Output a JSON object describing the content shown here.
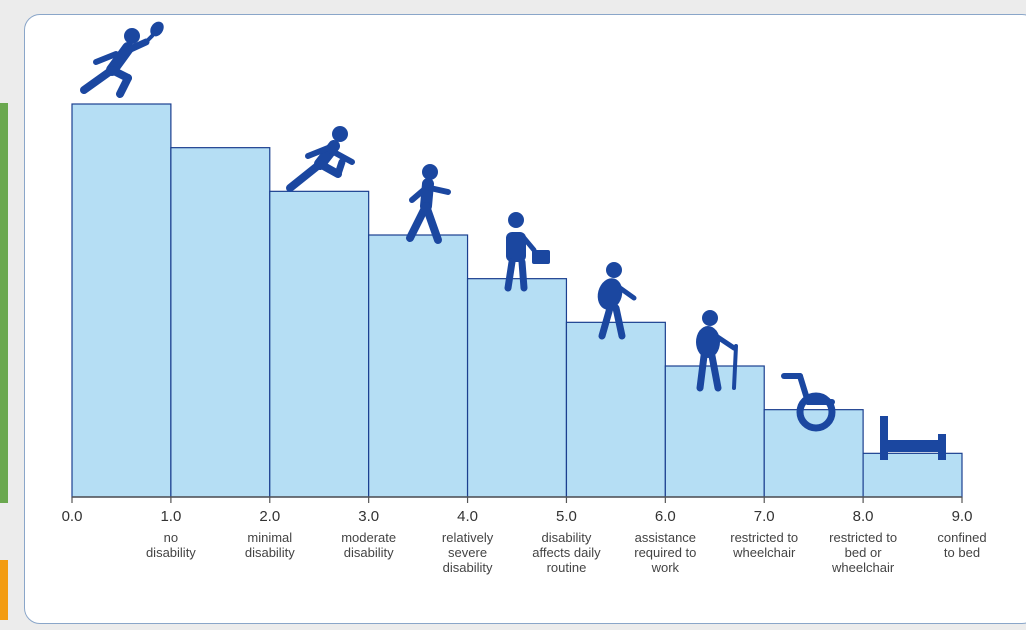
{
  "colors": {
    "step_fill": "#b5def4",
    "step_stroke": "#1b3f8f",
    "icon": "#1b47a0",
    "axis": "#555555",
    "panel_border": "#8aa6c9",
    "accent_green": "#6aa84f",
    "accent_orange": "#f39c12"
  },
  "chart_data": {
    "type": "bar",
    "x_ticks": [
      "0.0",
      "1.0",
      "2.0",
      "3.0",
      "4.0",
      "5.0",
      "6.0",
      "7.0",
      "8.0",
      "9.0"
    ],
    "step_levels": [
      9,
      8,
      7,
      6,
      5,
      4,
      3,
      2,
      1
    ],
    "descriptions": [
      {
        "score": "1.0",
        "lines": [
          "no",
          "disability"
        ]
      },
      {
        "score": "2.0",
        "lines": [
          "minimal",
          "disability"
        ]
      },
      {
        "score": "3.0",
        "lines": [
          "moderate",
          "disability"
        ]
      },
      {
        "score": "4.0",
        "lines": [
          "relatively",
          "severe",
          "disability"
        ]
      },
      {
        "score": "5.0",
        "lines": [
          "disability",
          "affects daily",
          "routine"
        ]
      },
      {
        "score": "6.0",
        "lines": [
          "assistance",
          "required to",
          "work"
        ]
      },
      {
        "score": "7.0",
        "lines": [
          "restricted to",
          "wheelchair"
        ]
      },
      {
        "score": "8.0",
        "lines": [
          "restricted to",
          "bed or",
          "wheelchair"
        ]
      },
      {
        "score": "9.0",
        "lines": [
          "confined",
          "to bed"
        ]
      }
    ],
    "icons": [
      "tennis-player-icon",
      "runner-icon",
      "walker-icon",
      "person-with-briefcase-icon",
      "hunched-walker-icon",
      "elderly-with-cane-icon",
      "wheelchair-icon",
      "bed-icon"
    ]
  }
}
